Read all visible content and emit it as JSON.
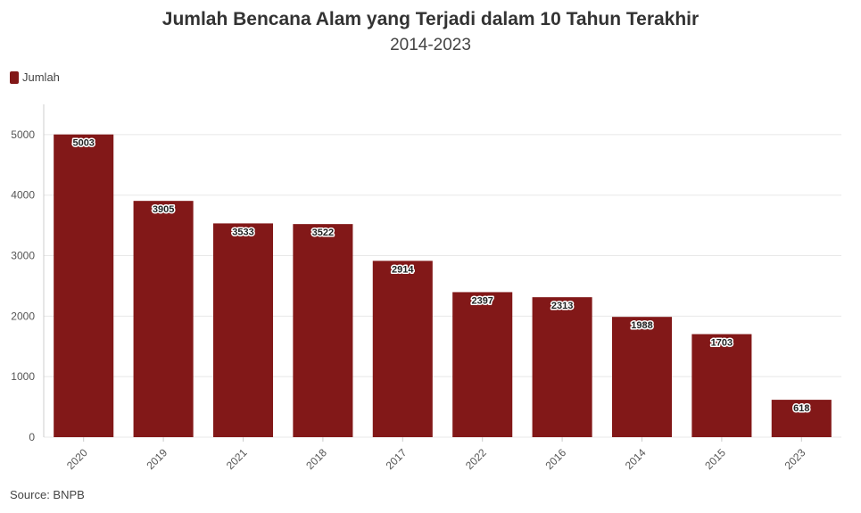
{
  "chart_data": {
    "type": "bar",
    "title": "Jumlah Bencana Alam yang Terjadi dalam 10 Tahun Terakhir",
    "subtitle": "2014-2023",
    "categories": [
      "2020",
      "2019",
      "2021",
      "2018",
      "2017",
      "2022",
      "2016",
      "2014",
      "2015",
      "2023"
    ],
    "series": [
      {
        "name": "Jumlah",
        "values": [
          5003,
          3905,
          3533,
          3522,
          2914,
          2397,
          2313,
          1988,
          1703,
          618
        ]
      }
    ],
    "ylim": [
      0,
      5500
    ],
    "yticks": [
      0,
      1000,
      2000,
      3000,
      4000,
      5000
    ],
    "grid": true,
    "legend_position": "top-left",
    "source": "Source: BNPB",
    "colors": {
      "bar": "#821818",
      "grid": "#e8e8e8",
      "axis": "#cccccc"
    }
  }
}
